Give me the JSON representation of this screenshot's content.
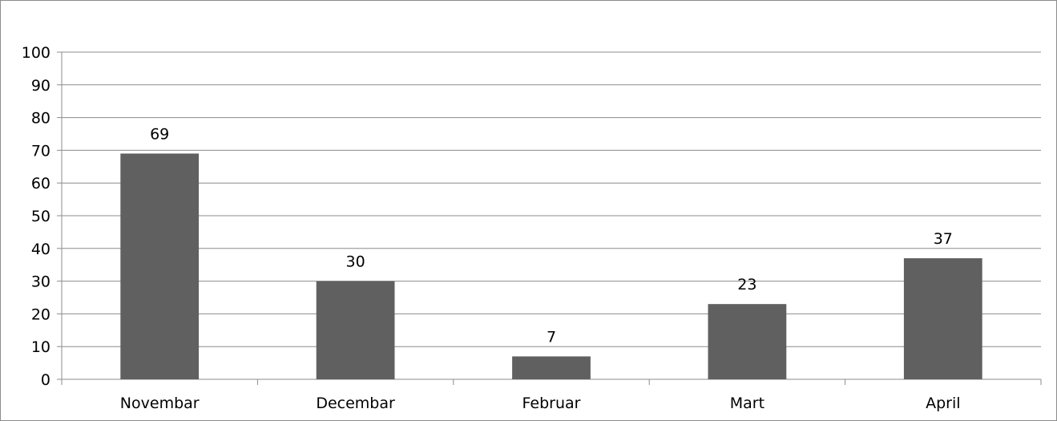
{
  "chart_data": {
    "type": "bar",
    "categories": [
      "Novembar",
      "Decembar",
      "Februar",
      "Mart",
      "April"
    ],
    "values": [
      69,
      30,
      7,
      23,
      37
    ],
    "data_labels": [
      "69",
      "30",
      "7",
      "23",
      "37"
    ],
    "yticks": [
      "0",
      "10",
      "20",
      "30",
      "40",
      "50",
      "60",
      "70",
      "80",
      "90",
      "100"
    ],
    "ylim": [
      0,
      100
    ],
    "grid": true,
    "legend": "none",
    "bar_color": "#606060",
    "grid_color": "#8c8c8c"
  }
}
